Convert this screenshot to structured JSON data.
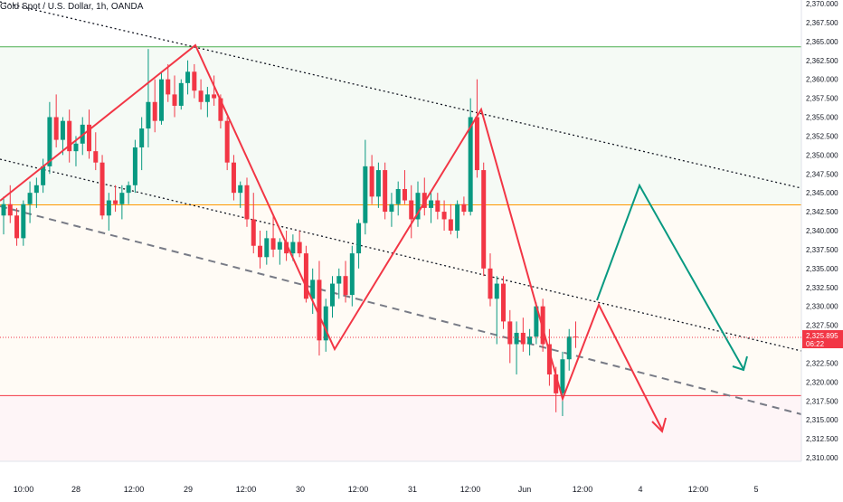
{
  "chart_data": {
    "type": "candlestick",
    "title": "Gold Spot / U.S. Dollar, 1h, OANDA",
    "x_labels": [
      "10:00",
      "28",
      "12:00",
      "29",
      "12:00",
      "30",
      "12:00",
      "31",
      "12:00",
      "Jun",
      "12:00",
      "4",
      "12:00",
      "5"
    ],
    "y_ticks": [
      "2,370.000",
      "2,367.500",
      "2,365.000",
      "2,362.500",
      "2,360.000",
      "2,357.500",
      "2,355.000",
      "2,352.500",
      "2,350.000",
      "2,347.500",
      "2,345.000",
      "2,342.500",
      "2,340.000",
      "2,337.500",
      "2,335.000",
      "2,332.500",
      "2,330.000",
      "2,327.500",
      "2,325.000",
      "2,322.500",
      "2,320.000",
      "2,317.500",
      "2,315.000",
      "2,312.500",
      "2,310.000"
    ],
    "ylim": [
      2309.5,
      2370.5
    ],
    "current_price": "2,325.895",
    "countdown": "06:22",
    "horizontal_levels": [
      {
        "price": 2364.3,
        "color": "#4caf50"
      },
      {
        "price": 2343.4,
        "color": "#ff9800"
      },
      {
        "price": 2318.2,
        "color": "#f23645"
      }
    ],
    "candles_ohlc": [
      [
        2342.0,
        2344.5,
        2339.5,
        2343.5
      ],
      [
        2343.5,
        2346.0,
        2341.0,
        2342.0
      ],
      [
        2342.0,
        2343.0,
        2338.0,
        2339.0
      ],
      [
        2339.0,
        2344.0,
        2338.0,
        2343.5
      ],
      [
        2343.5,
        2346.5,
        2341.0,
        2345.0
      ],
      [
        2345.0,
        2347.0,
        2343.0,
        2346.0
      ],
      [
        2346.0,
        2349.5,
        2345.0,
        2348.5
      ],
      [
        2348.5,
        2357.0,
        2347.5,
        2355.0
      ],
      [
        2355.0,
        2358.0,
        2351.0,
        2352.0
      ],
      [
        2352.0,
        2355.0,
        2350.0,
        2354.5
      ],
      [
        2354.5,
        2356.0,
        2349.0,
        2350.5
      ],
      [
        2350.5,
        2352.5,
        2348.5,
        2351.5
      ],
      [
        2351.5,
        2355.0,
        2350.0,
        2354.0
      ],
      [
        2354.0,
        2356.0,
        2349.5,
        2350.5
      ],
      [
        2350.5,
        2353.0,
        2348.0,
        2349.0
      ],
      [
        2349.0,
        2350.0,
        2341.5,
        2342.0
      ],
      [
        2342.0,
        2345.0,
        2340.0,
        2344.0
      ],
      [
        2344.0,
        2346.0,
        2342.5,
        2343.5
      ],
      [
        2343.5,
        2346.0,
        2341.5,
        2345.0
      ],
      [
        2345.0,
        2346.5,
        2343.5,
        2346.0
      ],
      [
        2346.0,
        2352.0,
        2345.0,
        2351.0
      ],
      [
        2351.0,
        2355.0,
        2348.0,
        2353.5
      ],
      [
        2353.5,
        2364.0,
        2351.0,
        2357.0
      ],
      [
        2357.0,
        2360.0,
        2353.0,
        2354.5
      ],
      [
        2354.5,
        2361.0,
        2354.0,
        2360.0
      ],
      [
        2360.0,
        2362.0,
        2357.0,
        2358.0
      ],
      [
        2358.0,
        2360.5,
        2355.0,
        2356.5
      ],
      [
        2356.5,
        2360.0,
        2356.0,
        2359.5
      ],
      [
        2359.5,
        2362.5,
        2358.0,
        2361.0
      ],
      [
        2361.0,
        2362.0,
        2357.5,
        2358.5
      ],
      [
        2358.5,
        2360.0,
        2356.0,
        2357.0
      ],
      [
        2357.0,
        2359.0,
        2355.0,
        2358.0
      ],
      [
        2358.0,
        2360.5,
        2356.5,
        2357.5
      ],
      [
        2357.5,
        2358.0,
        2353.5,
        2354.5
      ],
      [
        2354.5,
        2355.0,
        2348.0,
        2349.0
      ],
      [
        2349.0,
        2350.0,
        2344.0,
        2345.0
      ],
      [
        2345.0,
        2346.5,
        2343.0,
        2346.0
      ],
      [
        2346.0,
        2347.0,
        2340.5,
        2341.5
      ],
      [
        2341.5,
        2345.0,
        2337.0,
        2338.0
      ],
      [
        2338.0,
        2340.0,
        2335.0,
        2336.5
      ],
      [
        2336.5,
        2340.0,
        2335.5,
        2339.0
      ],
      [
        2339.0,
        2342.0,
        2336.5,
        2337.5
      ],
      [
        2337.5,
        2339.0,
        2335.5,
        2338.5
      ],
      [
        2338.5,
        2340.0,
        2336.0,
        2337.0
      ],
      [
        2337.0,
        2339.5,
        2336.0,
        2338.5
      ],
      [
        2338.5,
        2340.0,
        2336.5,
        2337.0
      ],
      [
        2337.0,
        2338.0,
        2330.5,
        2331.0
      ],
      [
        2331.0,
        2335.0,
        2329.0,
        2333.5
      ],
      [
        2333.5,
        2336.0,
        2323.5,
        2325.5
      ],
      [
        2325.5,
        2331.0,
        2324.0,
        2330.0
      ],
      [
        2330.0,
        2334.0,
        2328.5,
        2333.0
      ],
      [
        2333.0,
        2335.0,
        2331.0,
        2334.0
      ],
      [
        2334.0,
        2336.0,
        2330.5,
        2331.5
      ],
      [
        2331.5,
        2338.0,
        2330.0,
        2337.0
      ],
      [
        2337.0,
        2341.5,
        2335.0,
        2341.0
      ],
      [
        2341.0,
        2352.0,
        2339.5,
        2348.5
      ],
      [
        2348.5,
        2350.0,
        2343.5,
        2344.5
      ],
      [
        2344.5,
        2349.0,
        2343.0,
        2348.0
      ],
      [
        2348.0,
        2349.0,
        2341.5,
        2342.5
      ],
      [
        2342.5,
        2345.0,
        2340.5,
        2343.5
      ],
      [
        2343.5,
        2346.5,
        2342.0,
        2345.5
      ],
      [
        2345.5,
        2348.0,
        2343.5,
        2344.0
      ],
      [
        2344.0,
        2346.0,
        2339.0,
        2341.5
      ],
      [
        2341.5,
        2346.5,
        2340.5,
        2345.0
      ],
      [
        2345.0,
        2347.0,
        2342.0,
        2343.0
      ],
      [
        2343.0,
        2345.0,
        2341.0,
        2344.0
      ],
      [
        2344.0,
        2345.0,
        2341.5,
        2342.5
      ],
      [
        2342.5,
        2344.0,
        2340.0,
        2341.5
      ],
      [
        2341.5,
        2343.5,
        2339.5,
        2340.0
      ],
      [
        2340.0,
        2344.0,
        2339.0,
        2343.5
      ],
      [
        2343.5,
        2344.5,
        2342.0,
        2342.5
      ],
      [
        2342.5,
        2357.5,
        2342.0,
        2355.0
      ],
      [
        2355.0,
        2360.0,
        2347.0,
        2348.0
      ],
      [
        2348.0,
        2349.0,
        2334.0,
        2335.0
      ],
      [
        2335.0,
        2337.0,
        2330.0,
        2331.0
      ],
      [
        2331.0,
        2334.0,
        2325.0,
        2333.0
      ],
      [
        2333.0,
        2334.0,
        2327.0,
        2328.0
      ],
      [
        2328.0,
        2329.5,
        2322.5,
        2325.0
      ],
      [
        2325.0,
        2328.0,
        2321.0,
        2326.5
      ],
      [
        2326.5,
        2328.5,
        2324.0,
        2325.0
      ],
      [
        2325.0,
        2327.0,
        2323.5,
        2326.0
      ],
      [
        2326.0,
        2330.5,
        2325.0,
        2330.0
      ],
      [
        2330.0,
        2331.0,
        2324.0,
        2325.0
      ],
      [
        2325.0,
        2327.0,
        2319.5,
        2321.0
      ],
      [
        2321.0,
        2322.0,
        2316.0,
        2318.5
      ],
      [
        2318.5,
        2324.0,
        2315.5,
        2323.0
      ],
      [
        2323.0,
        2327.0,
        2321.5,
        2326.0
      ],
      [
        2326.0,
        2328.0,
        2324.5,
        2325.9
      ]
    ],
    "drawings": {
      "zigzag_color": "#f23645",
      "projection_color": "#089981",
      "bullish_projection": "green zigzag up to ~2345.5 then down to ~2321.5",
      "bearish_projection": "red zigzag up to ~2330.5 then down to ~2313.5"
    }
  }
}
